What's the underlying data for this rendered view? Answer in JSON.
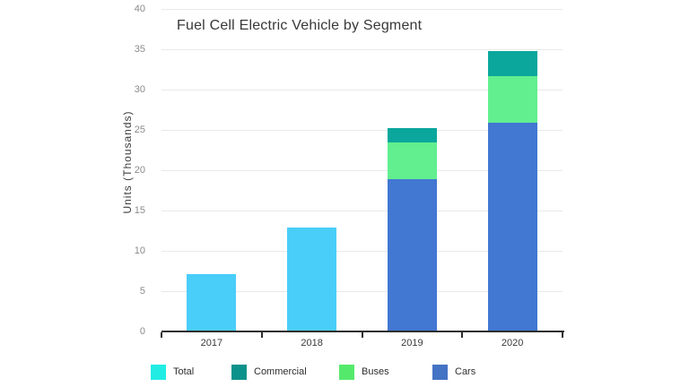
{
  "chart_data": {
    "type": "bar",
    "stacked": true,
    "title": "Fuel Cell Electric Vehicle by Segment",
    "xlabel": "",
    "ylabel": "Units (Thousands)",
    "categories": [
      "2017",
      "2018",
      "2019",
      "2020"
    ],
    "y_ticks": [
      0,
      5,
      10,
      15,
      20,
      25,
      30,
      35,
      40
    ],
    "ylim": [
      0,
      40
    ],
    "grid": "horizontal",
    "legend_position": "bottom",
    "stack_order": [
      "Cars",
      "Buses",
      "Commercial",
      "Total"
    ],
    "series": [
      {
        "name": "Total",
        "values": [
          7.1,
          12.9,
          0,
          0
        ],
        "color": "#49cef9",
        "legend_color": "#21ece4"
      },
      {
        "name": "Commercial",
        "values": [
          0,
          0,
          1.8,
          3.1
        ],
        "color": "#0ba79c",
        "legend_color": "#0d928b"
      },
      {
        "name": "Buses",
        "values": [
          0,
          0,
          4.5,
          5.8
        ],
        "color": "#61ef90",
        "legend_color": "#55e96c"
      },
      {
        "name": "Cars",
        "values": [
          0,
          0,
          18.9,
          25.9
        ],
        "color": "#4277d2",
        "legend_color": "#4472c4"
      }
    ],
    "totals": [
      7.1,
      12.9,
      25.2,
      34.8
    ]
  }
}
